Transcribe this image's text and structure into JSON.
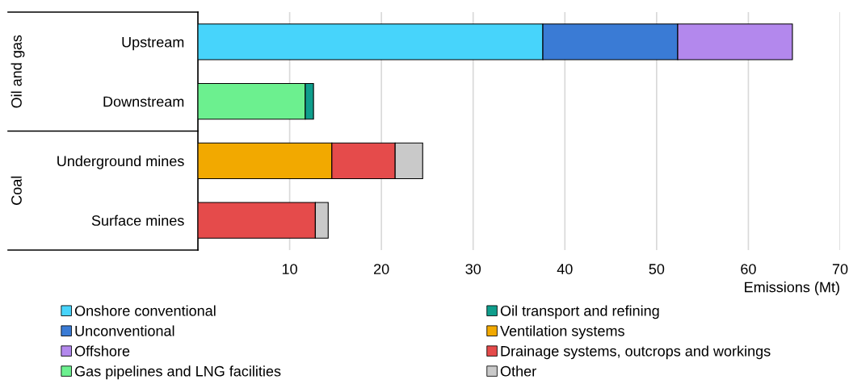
{
  "chart_data": {
    "type": "bar",
    "orientation": "horizontal",
    "stacked": true,
    "categories": [
      "Upstream",
      "Downstream",
      "Underground mines",
      "Surface mines"
    ],
    "series": [
      {
        "name": "Onshore conventional",
        "color": "#47d4fb",
        "values": [
          37.6,
          null,
          null,
          null
        ]
      },
      {
        "name": "Unconventional",
        "color": "#3a7bd5",
        "values": [
          14.7,
          null,
          null,
          null
        ]
      },
      {
        "name": "Offshore",
        "color": "#b388ed",
        "values": [
          12.5,
          null,
          null,
          null
        ]
      },
      {
        "name": "Gas pipelines and LNG facilities",
        "color": "#6cf08f",
        "values": [
          null,
          11.7,
          null,
          null
        ]
      },
      {
        "name": "Oil transport and refining",
        "color": "#0f9e8c",
        "values": [
          null,
          0.9,
          null,
          null
        ]
      },
      {
        "name": "Ventilation systems",
        "color": "#f2a900",
        "values": [
          null,
          null,
          14.6,
          null
        ]
      },
      {
        "name": "Drainage systems, outcrops and workings",
        "color": "#e54b4b",
        "values": [
          null,
          null,
          6.9,
          12.8
        ]
      },
      {
        "name": "Other",
        "color": "#c9c9c9",
        "values": [
          null,
          null,
          3.0,
          1.4
        ]
      }
    ],
    "xlim": [
      0,
      70
    ],
    "xticks": [
      10,
      20,
      30,
      40,
      50,
      60,
      70
    ],
    "xlabel": "Emissions (Mt)",
    "grid": "x",
    "legend": "bottom",
    "annotations": [
      "Oil and gas",
      "Coal"
    ]
  }
}
